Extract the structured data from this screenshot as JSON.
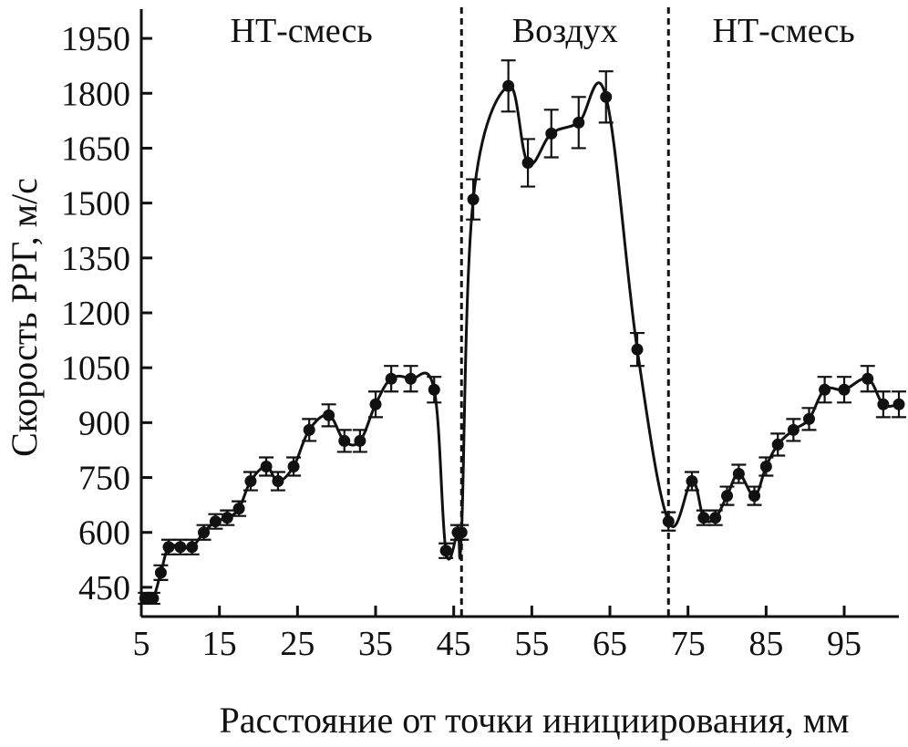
{
  "chart_data": {
    "type": "line",
    "title": "",
    "xlabel": "Расстояние от точки инициирования, мм",
    "ylabel": "Скорость РРГ, м/с",
    "xlim": [
      5,
      102
    ],
    "ylim": [
      370,
      2030
    ],
    "x_ticks": [
      5,
      15,
      25,
      35,
      45,
      55,
      65,
      75,
      85,
      95
    ],
    "y_ticks": [
      450,
      600,
      750,
      900,
      1050,
      1200,
      1350,
      1500,
      1650,
      1800,
      1950
    ],
    "x_tick_labels": [
      "5",
      "15",
      "25",
      "35",
      "45",
      "55",
      "65",
      "75",
      "85",
      "95"
    ],
    "y_tick_labels": [
      "450",
      "600",
      "750",
      "900",
      "1050",
      "1200",
      "1350",
      "1500",
      "1650",
      "1800",
      "1950"
    ],
    "grid": false,
    "legend": "none",
    "colors": {
      "line": "#111111",
      "axis": "#111111",
      "background": "#ffffff"
    },
    "region_boundaries": [
      46,
      72.5
    ],
    "regions": [
      {
        "label": "НТ-смесь",
        "x_range": [
          5,
          46
        ]
      },
      {
        "label": "Воздух",
        "x_range": [
          46,
          72.5
        ]
      },
      {
        "label": "НТ-смесь",
        "x_range": [
          72.5,
          102
        ]
      }
    ],
    "series": [
      {
        "x": [
          5.5,
          6.5,
          7.5,
          8.5,
          10,
          11.5,
          13,
          14.5,
          16,
          17.5,
          19,
          21,
          22.5,
          24.5,
          26.5,
          29,
          31,
          33,
          35,
          37,
          39.5,
          42.5,
          44,
          45.5,
          46,
          47.5,
          52,
          54.5,
          57.5,
          61,
          64.5,
          68.5,
          72.5,
          75.5,
          77,
          78.5,
          80,
          81.5,
          83.5,
          85,
          86.5,
          88.5,
          90.5,
          92.5,
          95,
          98,
          100,
          102
        ],
        "y": [
          420,
          420,
          490,
          560,
          560,
          560,
          600,
          630,
          640,
          665,
          740,
          780,
          740,
          780,
          880,
          920,
          850,
          850,
          950,
          1020,
          1020,
          990,
          550,
          600,
          600,
          1510,
          1820,
          1610,
          1690,
          1720,
          1790,
          1100,
          630,
          740,
          640,
          640,
          700,
          760,
          700,
          780,
          840,
          880,
          910,
          990,
          990,
          1020,
          950,
          950
        ],
        "error": [
          15,
          15,
          20,
          20,
          20,
          20,
          20,
          20,
          20,
          20,
          25,
          25,
          25,
          25,
          30,
          30,
          30,
          30,
          35,
          35,
          35,
          35,
          20,
          20,
          20,
          55,
          70,
          65,
          65,
          70,
          70,
          45,
          25,
          25,
          20,
          20,
          25,
          25,
          25,
          25,
          30,
          30,
          30,
          35,
          35,
          35,
          35,
          35
        ]
      }
    ]
  }
}
